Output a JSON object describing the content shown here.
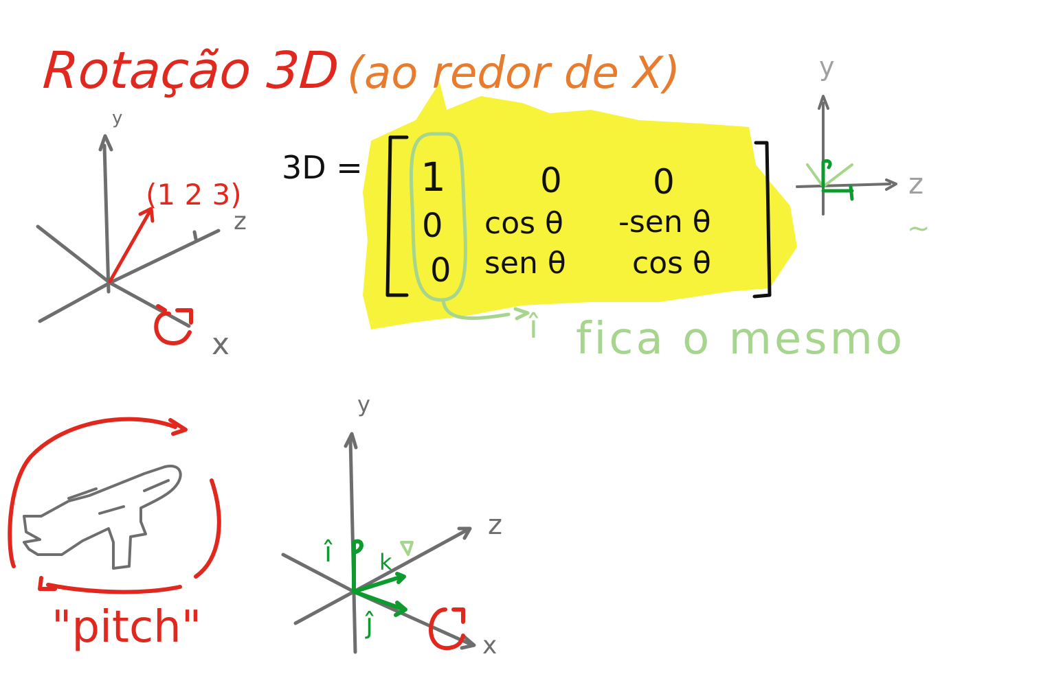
{
  "title": {
    "main": "Rotação 3D",
    "sub": "(ao redor de X)"
  },
  "colors": {
    "red": "#e0281e",
    "orange": "#e87c2e",
    "gray": "#6e6e6e",
    "light_gray": "#a0a0a0",
    "black": "#111111",
    "yellow": "#f7f23a",
    "green": "#0d9a2e",
    "light_green": "#a6d58d"
  },
  "axes1": {
    "y": "y",
    "z": "z",
    "x": "x",
    "vector": "(1 2 3)"
  },
  "matrix": {
    "label": "3D =",
    "rows": [
      [
        "1",
        "0",
        "0"
      ],
      [
        "0",
        "cos θ",
        "-sen θ"
      ],
      [
        "0",
        "sen θ",
        "cos θ"
      ]
    ]
  },
  "note": {
    "i": "î",
    "text": "fica o mesmo"
  },
  "axes_small": {
    "y": "y",
    "z": "z",
    "mark": "~"
  },
  "pitch": {
    "label": "\"pitch\""
  },
  "axes2": {
    "y": "y",
    "z": "z",
    "x": "x",
    "i_label": "î",
    "j_label": "ĵ",
    "k_label": "k"
  }
}
